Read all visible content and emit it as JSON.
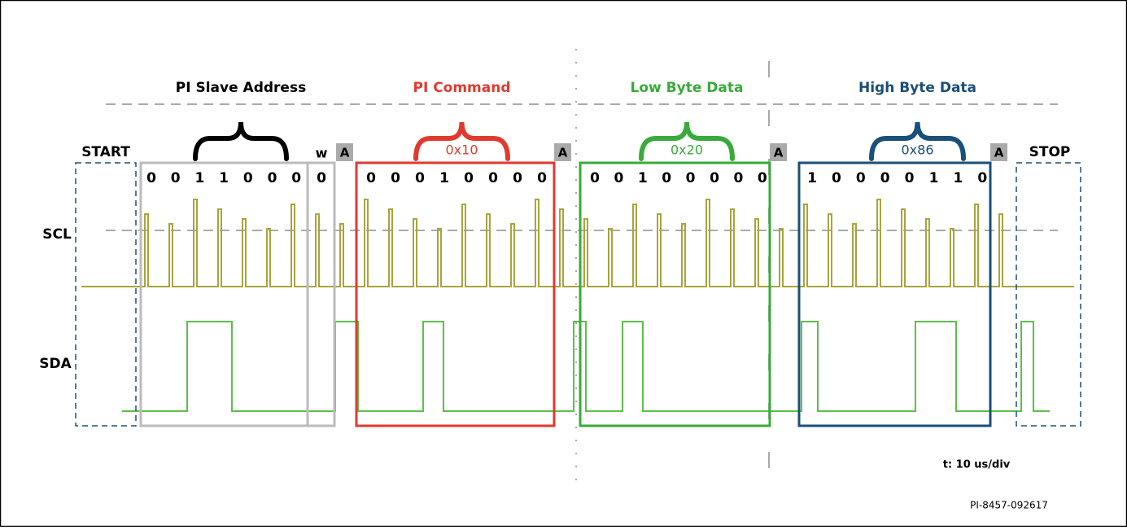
{
  "labels": {
    "start": "START",
    "stop": "STOP",
    "scl": "SCL",
    "sda": "SDA",
    "write": "w",
    "timebase": "t: 10 us/div",
    "figure_id": "PI-8457-092617"
  },
  "write_bit": "0",
  "ack": [
    "A",
    "A",
    "A",
    "A"
  ],
  "segments": [
    {
      "title": "PI Slave Address",
      "bits": [
        "0",
        "0",
        "1",
        "1",
        "0",
        "0",
        "0"
      ]
    },
    {
      "title": "PI Command",
      "hex": "0x10",
      "bits": [
        "0",
        "0",
        "0",
        "1",
        "0",
        "0",
        "0",
        "0"
      ]
    },
    {
      "title": "Low Byte Data",
      "hex": "0x20",
      "bits": [
        "0",
        "0",
        "1",
        "0",
        "0",
        "0",
        "0",
        "0"
      ]
    },
    {
      "title": "High Byte Data",
      "hex": "0x86",
      "bits": [
        "1",
        "0",
        "0",
        "0",
        "0",
        "1",
        "1",
        "0"
      ]
    }
  ]
}
